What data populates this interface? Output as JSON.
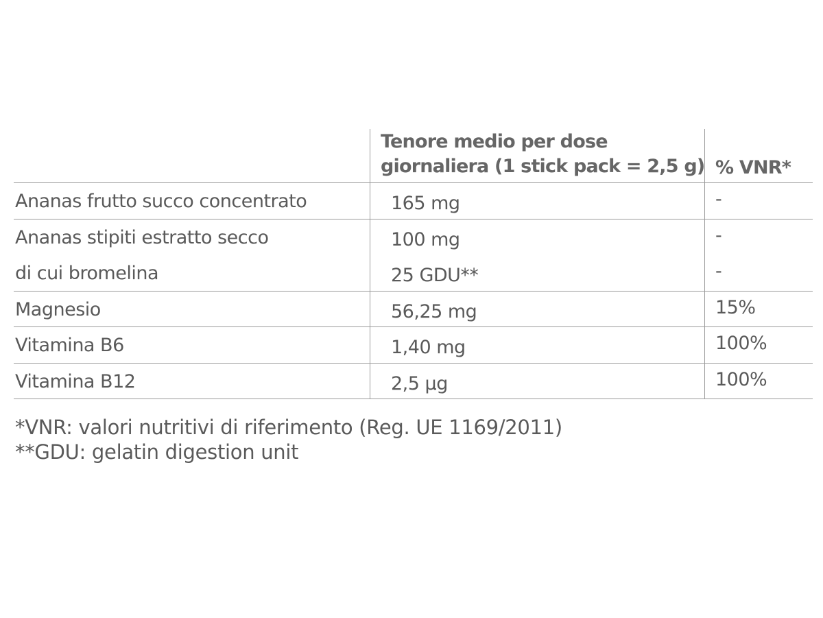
{
  "table": {
    "header": {
      "dose": [
        "Tenore medio per dose",
        "giornaliera (1 stick pack = 2,5 g)"
      ],
      "vnr": "% VNR*"
    },
    "groups": [
      {
        "rows": [
          [
            "Ananas frutto succo concentrato",
            "165 mg",
            "-"
          ]
        ]
      },
      {
        "rows": [
          [
            "Ananas stipiti estratto secco",
            "100 mg",
            "-"
          ],
          [
            "di cui bromelina",
            "25 GDU**",
            "-"
          ]
        ]
      },
      {
        "rows": [
          [
            "Magnesio",
            "56,25 mg",
            "15%"
          ]
        ]
      },
      {
        "rows": [
          [
            "Vitamina B6",
            "1,40 mg",
            "100%"
          ]
        ]
      },
      {
        "rows": [
          [
            "Vitamina B12",
            "2,5 µg",
            "100%"
          ]
        ]
      }
    ]
  },
  "footnotes": [
    "*VNR: valori nutritivi di riferimento (Reg. UE 1169/2011)",
    "**GDU: gelatin digestion unit"
  ]
}
